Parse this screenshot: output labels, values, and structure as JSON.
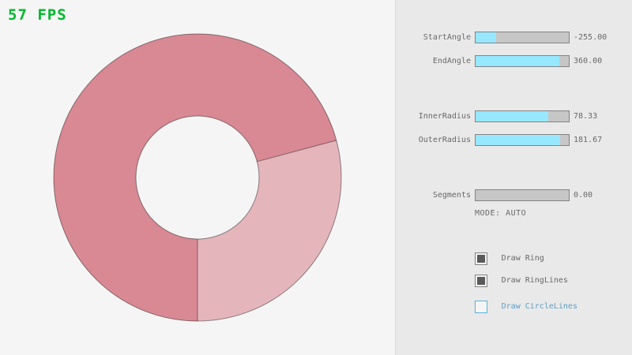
{
  "fps_label": "57 FPS",
  "colors": {
    "fps": "#00b82e",
    "background": "#f5f5f5",
    "panel": "#e9e9e9",
    "ring_single": "#e5b5bc",
    "ring_double": "#d98994",
    "ring_line": "rgba(0,0,0,0.42)",
    "slider_fill": "#97e8ff",
    "slider_track": "#c6c6c6",
    "border": "#838383",
    "text": "#686868",
    "focus_border": "#5bb2d9",
    "focus_text": "#5b9ec4"
  },
  "ring": {
    "start_angle": -255.0,
    "end_angle": 360.0,
    "inner_radius": 78.33,
    "outer_radius": 181.67,
    "segments": 0,
    "mode": "AUTO"
  },
  "controls": {
    "sliders": [
      {
        "name": "StartAngle",
        "value": "-255.00",
        "fill_pct": 21.7
      },
      {
        "name": "EndAngle",
        "value": "360.00",
        "fill_pct": 90.0
      },
      {
        "name": "InnerRadius",
        "value": "78.33",
        "fill_pct": 78.3
      },
      {
        "name": "OuterRadius",
        "value": "181.67",
        "fill_pct": 90.8
      },
      {
        "name": "Segments",
        "value": "0.00",
        "fill_pct": 0
      }
    ],
    "mode_label": "MODE: AUTO",
    "checkboxes": [
      {
        "label": "Draw Ring",
        "checked": true,
        "focused": false
      },
      {
        "label": "Draw RingLines",
        "checked": true,
        "focused": false
      },
      {
        "label": "Draw CircleLines",
        "checked": false,
        "focused": true
      }
    ]
  }
}
